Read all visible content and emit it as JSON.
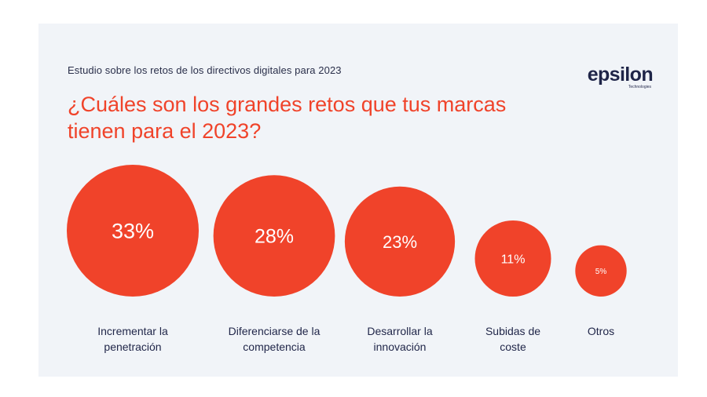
{
  "header": {
    "subtitle": "Estudio sobre los retos de los directivos digitales para 2023",
    "title": "¿Cuáles son los grandes retos que tus marcas tienen para el 2023?",
    "logo_word": "epsilon",
    "logo_sub": "Technologies"
  },
  "colors": {
    "accent": "#f0432a",
    "text_dark": "#1f2548",
    "background_card": "#f1f4f8"
  },
  "chart_data": {
    "type": "bubble",
    "title": "¿Cuáles son los grandes retos que tus marcas tienen para el 2023?",
    "categories": [
      [
        "Incrementar la",
        "penetración"
      ],
      [
        "Diferenciarse de la",
        "competencia"
      ],
      [
        "Desarrollar la",
        "innovación"
      ],
      [
        "Subidas de",
        "coste"
      ],
      [
        "Otros"
      ]
    ],
    "values": [
      33,
      28,
      23,
      11,
      5
    ],
    "value_labels": [
      "33%",
      "28%",
      "23%",
      "11%",
      "5%"
    ],
    "unit": "%"
  }
}
